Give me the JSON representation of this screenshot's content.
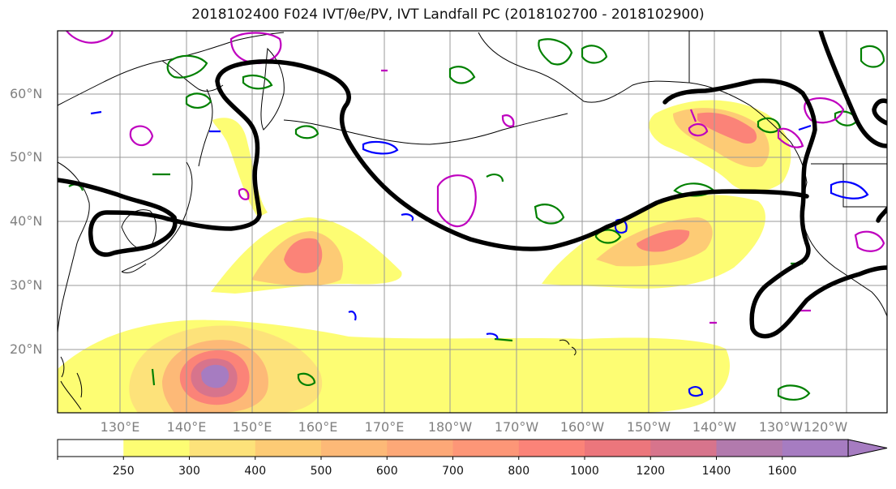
{
  "title": "2018102400 F024 IVT/θe/PV, IVT Landfall PC (2018102700 - 2018102900)",
  "lat_labels": [
    "60°N",
    "50°N",
    "40°N",
    "30°N",
    "20°N"
  ],
  "lon_labels": [
    "130°E",
    "140°E",
    "150°E",
    "160°E",
    "170°E",
    "180°W",
    "170°W",
    "160°W",
    "150°W",
    "140°W",
    "130°W",
    "120°W"
  ],
  "colorbar": {
    "ticks": [
      "250",
      "300",
      "400",
      "500",
      "600",
      "700",
      "800",
      "1000",
      "1200",
      "1400",
      "1600"
    ],
    "colors": [
      "#ffffff",
      "#fdfd73",
      "#fde27a",
      "#fdcb75",
      "#fdb977",
      "#fda877",
      "#fd9677",
      "#fb8378",
      "#ec767c",
      "#d7748c",
      "#b27aad",
      "#a67cc1"
    ]
  },
  "contour_colors": {
    "ivt_landfall_pc": "#000000",
    "theta_e": "#008000",
    "pv_positive": "#bf00bf",
    "pv_negative": "#0000ff"
  }
}
